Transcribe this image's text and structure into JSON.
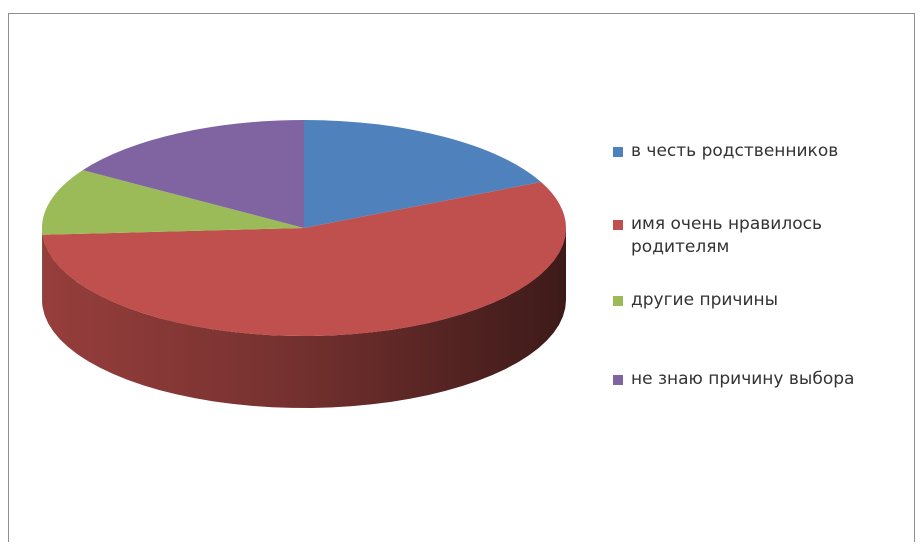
{
  "chart_data": {
    "type": "pie",
    "categories": [
      "в честь родственников",
      "имя очень нравилось родителям",
      "другие причины",
      "не знаю причину выбора"
    ],
    "values": [
      18,
      56,
      10,
      16
    ],
    "colors": [
      "#4f81bd",
      "#c0504d",
      "#9bbb59",
      "#8064a2"
    ],
    "legend_position": "right",
    "style": "3d"
  },
  "legend": [
    {
      "label": "в честь родственников",
      "color": "#4f81bd"
    },
    {
      "label": "имя очень нравилось родителям",
      "color": "#c0504d"
    },
    {
      "label": "другие причины",
      "color": "#9bbb59"
    },
    {
      "label": "не знаю причину выбора",
      "color": "#8064a2"
    }
  ]
}
